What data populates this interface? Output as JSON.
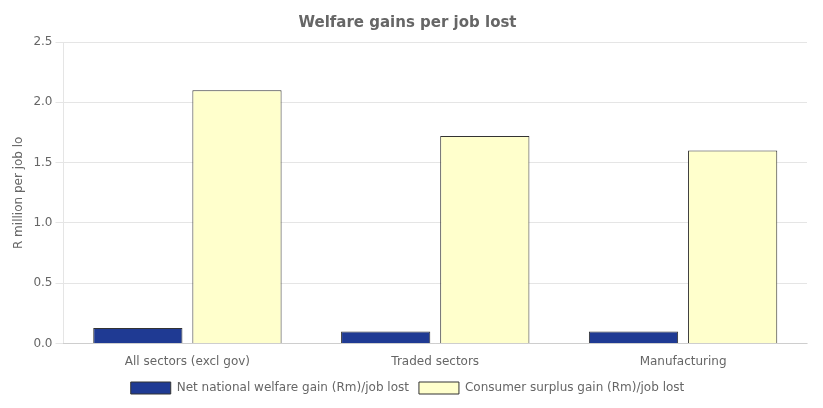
{
  "chart_data": {
    "type": "bar",
    "title": "Welfare gains per job lost",
    "ylabel": "R million per job lo",
    "categories": [
      "All sectors (excl gov)",
      "Traded sectors",
      "Manufacturing"
    ],
    "series": [
      {
        "name": "Net national welfare gain (Rm)/job lost",
        "color": "#1F3A93",
        "values": [
          0.13,
          0.1,
          0.1
        ]
      },
      {
        "name": "Consumer surplus gain (Rm)/job lost",
        "color": "#FFFFCC",
        "values": [
          2.1,
          1.72,
          1.6
        ]
      }
    ],
    "ylim": [
      0.0,
      2.5
    ],
    "yticks": [
      {
        "value": 0,
        "label": "0.0"
      },
      0.5,
      {
        "value": 1,
        "label": "1.0"
      },
      1.5,
      {
        "value": 2,
        "label": "2.0"
      },
      2.5
    ],
    "grid": true,
    "legend": "bottom"
  }
}
